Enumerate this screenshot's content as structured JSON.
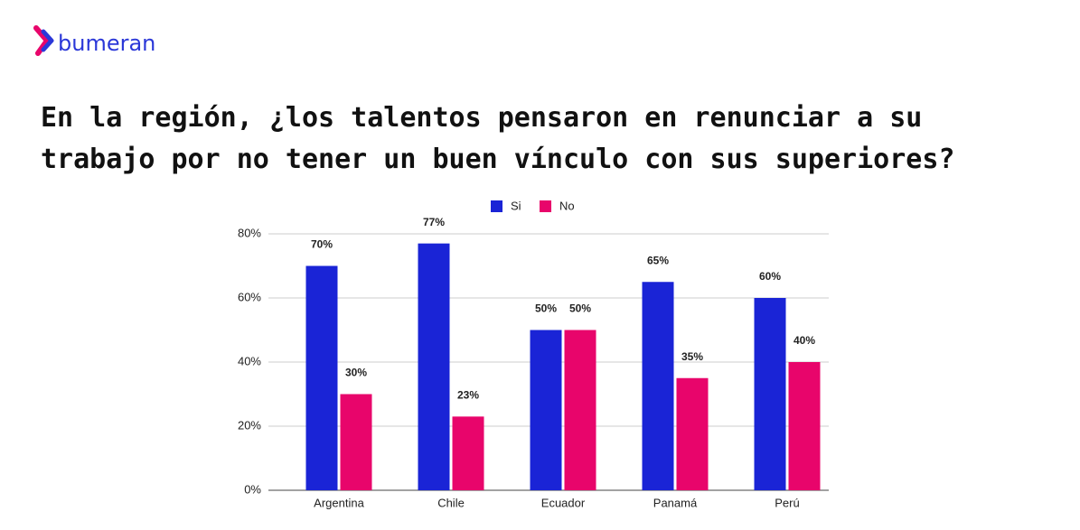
{
  "brand": "bumeran",
  "chart_data": {
    "type": "bar",
    "title": [
      "En la región, ¿los talentos pensaron en renunciar a su",
      "trabajo por no tener un buen vínculo con sus superiores?"
    ],
    "categories": [
      "Argentina",
      "Chile",
      "Ecuador",
      "Panamá",
      "Perú"
    ],
    "series": [
      {
        "name": "Si",
        "color": "#1a24d6",
        "values": [
          70,
          77,
          50,
          65,
          60
        ],
        "value_labels": [
          "70%",
          "77%",
          "50%",
          "65%",
          "60%"
        ]
      },
      {
        "name": "No",
        "color": "#e8056b",
        "values": [
          30,
          23,
          50,
          35,
          40
        ],
        "value_labels": [
          "30%",
          "23%",
          "50%",
          "35%",
          "40%"
        ]
      }
    ],
    "ylim": [
      0,
      80
    ],
    "yticks": [
      {
        "value": 0,
        "label": "0%"
      },
      {
        "value": 20,
        "label": "20%"
      },
      {
        "value": 40,
        "label": "40%"
      },
      {
        "value": 60,
        "label": "60%"
      },
      {
        "value": 80,
        "label": "80%"
      }
    ],
    "grid": true,
    "legend": "top"
  }
}
